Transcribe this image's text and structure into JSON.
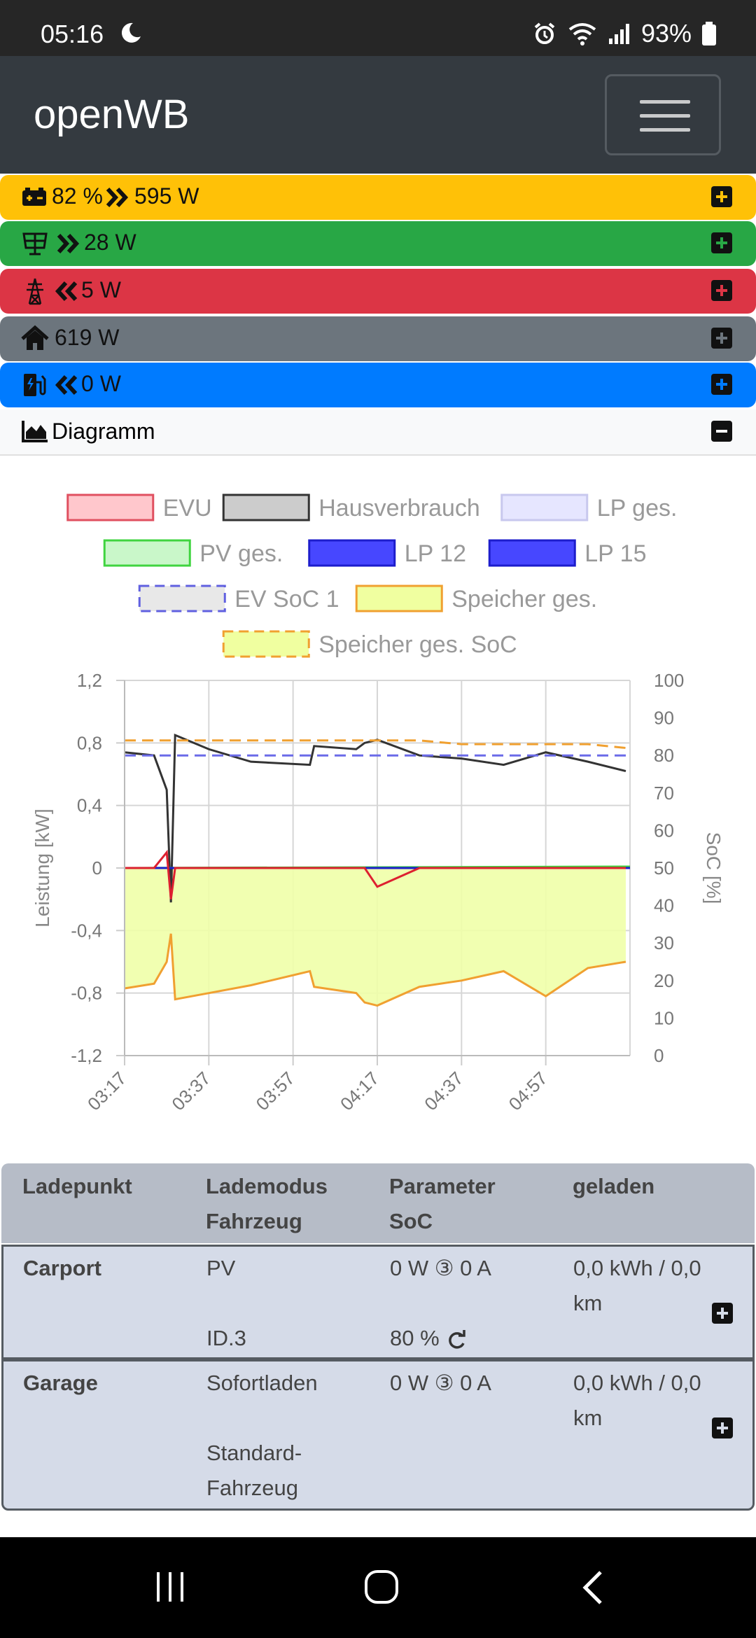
{
  "status_bar": {
    "time": "05:16",
    "battery": "93%"
  },
  "navbar": {
    "brand": "openWB"
  },
  "summary": {
    "battery": {
      "soc": "82 %",
      "power": "595 W",
      "color": "#ffc107"
    },
    "pv": {
      "power": "28 W",
      "color": "#28a745"
    },
    "grid": {
      "power": "5 W",
      "color": "#dc3545"
    },
    "house": {
      "power": "619 W",
      "color": "#6c757d"
    },
    "charging": {
      "power": "0 W",
      "color": "#007bff"
    }
  },
  "diagram": {
    "label": "Diagramm"
  },
  "chart_data": {
    "type": "line",
    "legend": [
      "EVU",
      "Hausverbrauch",
      "LP ges.",
      "PV ges.",
      "LP 12",
      "LP 15",
      "EV SoC 1",
      "Speicher ges.",
      "Speicher ges. SoC"
    ],
    "x_ticks": [
      "03:17",
      "03:37",
      "03:57",
      "04:17",
      "04:37",
      "04:57"
    ],
    "y_left_ticks": [
      "1,2",
      "0,8",
      "0,4",
      "0",
      "-0,4",
      "-0,8",
      "-1,2"
    ],
    "y_right_ticks": [
      "100",
      "90",
      "80",
      "70",
      "60",
      "50",
      "40",
      "30",
      "20",
      "10",
      "0"
    ],
    "ylabel": "Leistung [kW]",
    "y2label": "SoC [%]",
    "ylim": [
      -1.2,
      1.2
    ],
    "y2lim": [
      0,
      100
    ],
    "x_minutes": [
      0,
      7,
      10,
      11,
      12,
      20,
      30,
      44,
      45,
      55,
      57,
      60,
      70,
      80,
      90,
      100,
      110,
      119
    ],
    "series": [
      {
        "name": "Hausverbrauch",
        "values": [
          0.74,
          0.72,
          0.5,
          -0.22,
          0.85,
          0.76,
          0.68,
          0.66,
          0.78,
          0.76,
          0.8,
          0.82,
          0.72,
          0.7,
          0.66,
          0.74,
          0.68,
          0.62
        ]
      },
      {
        "name": "Speicher ges.",
        "values": [
          -0.77,
          -0.74,
          -0.6,
          -0.42,
          -0.84,
          -0.8,
          -0.75,
          -0.66,
          -0.76,
          -0.8,
          -0.86,
          -0.88,
          -0.76,
          -0.72,
          -0.66,
          -0.82,
          -0.64,
          -0.6
        ]
      },
      {
        "name": "EVU",
        "values": [
          0.0,
          0.0,
          0.1,
          -0.2,
          0.0,
          0.0,
          0.0,
          0.0,
          0.0,
          0.0,
          0.0,
          -0.12,
          0.0,
          0.0,
          0.0,
          0.0,
          0.0,
          0.0
        ]
      },
      {
        "name": "EV SoC 1",
        "values": [
          80,
          80,
          80,
          80,
          80,
          80,
          80,
          80,
          80,
          80,
          80,
          80,
          80,
          80,
          80,
          80,
          80,
          80
        ]
      },
      {
        "name": "Speicher ges. SoC",
        "values": [
          84,
          84,
          84,
          84,
          84,
          84,
          84,
          84,
          84,
          84,
          84,
          84,
          84,
          83,
          83,
          83,
          83,
          82
        ]
      }
    ]
  },
  "table": {
    "headers": {
      "col1": "Ladepunkt",
      "col2a": "Lademodus",
      "col2b": "Fahrzeug",
      "col3a": "Parameter",
      "col3b": "SoC",
      "col4": "geladen"
    },
    "rows": [
      {
        "name": "Carport",
        "mode": "PV",
        "vehicle": "ID.3",
        "params": "0 W ③ 0 A",
        "soc": "80 %",
        "charged1": "0,0 kWh / 0,0",
        "charged2": "km"
      },
      {
        "name": "Garage",
        "mode": "Sofortladen",
        "vehicle1": "Standard-",
        "vehicle2": "Fahrzeug",
        "params": "0 W ③ 0 A",
        "charged1": "0,0 kWh / 0,0",
        "charged2": "km"
      }
    ]
  }
}
